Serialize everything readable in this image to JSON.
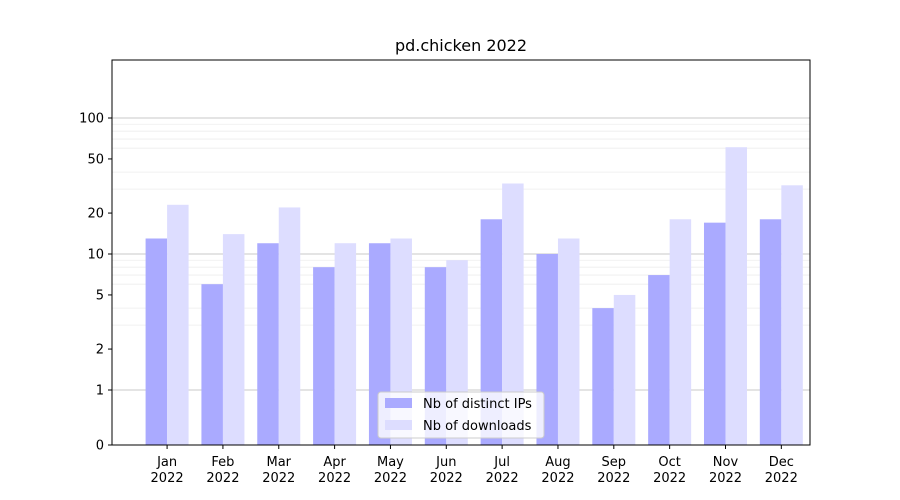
{
  "chart_data": {
    "type": "bar",
    "title": "pd.chicken 2022",
    "xlabel": "",
    "ylabel": "",
    "yscale": "symlog",
    "ylim": [
      0,
      120
    ],
    "ytick_values": [
      0,
      1,
      2,
      5,
      10,
      20,
      50,
      100
    ],
    "ytick_labels": [
      "0",
      "1",
      "2",
      "5",
      "10",
      "20",
      "50",
      "100"
    ],
    "grid": true,
    "legend_position": "bottom-center",
    "categories": [
      "Jan\n2022",
      "Feb\n2022",
      "Mar\n2022",
      "Apr\n2022",
      "May\n2022",
      "Jun\n2022",
      "Jul\n2022",
      "Aug\n2022",
      "Sep\n2022",
      "Oct\n2022",
      "Nov\n2022",
      "Dec\n2022"
    ],
    "series": [
      {
        "name": "Nb of distinct IPs",
        "color": "#aaaaff",
        "values": [
          13,
          6,
          12,
          8,
          12,
          8,
          18,
          10,
          4,
          7,
          17,
          18
        ]
      },
      {
        "name": "Nb of downloads",
        "color": "#ddddff",
        "values": [
          23,
          14,
          22,
          12,
          13,
          9,
          33,
          13,
          5,
          18,
          61,
          32
        ]
      }
    ]
  }
}
